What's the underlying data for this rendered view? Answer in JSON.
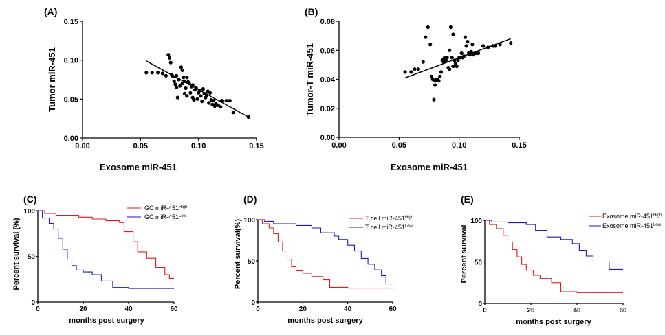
{
  "chart_data": [
    {
      "id": "A",
      "panel_label": "(A)",
      "type": "scatter",
      "xlabel": "Exosome miR-451",
      "ylabel": "Tumor miR-451",
      "xlim": [
        0.0,
        0.15
      ],
      "ylim": [
        0.0,
        0.15
      ],
      "xticks": [
        "0.00",
        "0.05",
        "0.10",
        "0.15"
      ],
      "yticks": [
        "0.00",
        "0.05",
        "0.10",
        "0.15"
      ],
      "xtick_values": [
        0.0,
        0.05,
        0.1,
        0.15
      ],
      "ytick_values": [
        0.0,
        0.05,
        0.1,
        0.15
      ],
      "regression": {
        "x": [
          0.055,
          0.143
        ],
        "y": [
          0.099,
          0.027
        ]
      },
      "points": [
        [
          0.055,
          0.084
        ],
        [
          0.06,
          0.084
        ],
        [
          0.065,
          0.084
        ],
        [
          0.069,
          0.083
        ],
        [
          0.072,
          0.08
        ],
        [
          0.074,
          0.107
        ],
        [
          0.075,
          0.103
        ],
        [
          0.076,
          0.097
        ],
        [
          0.077,
          0.081
        ],
        [
          0.078,
          0.079
        ],
        [
          0.079,
          0.073
        ],
        [
          0.08,
          0.069
        ],
        [
          0.081,
          0.08
        ],
        [
          0.081,
          0.065
        ],
        [
          0.082,
          0.052
        ],
        [
          0.083,
          0.075
        ],
        [
          0.084,
          0.067
        ],
        [
          0.085,
          0.091
        ],
        [
          0.086,
          0.087
        ],
        [
          0.086,
          0.07
        ],
        [
          0.087,
          0.078
        ],
        [
          0.088,
          0.057
        ],
        [
          0.088,
          0.073
        ],
        [
          0.089,
          0.064
        ],
        [
          0.09,
          0.078
        ],
        [
          0.09,
          0.054
        ],
        [
          0.091,
          0.072
        ],
        [
          0.092,
          0.07
        ],
        [
          0.093,
          0.058
        ],
        [
          0.094,
          0.066
        ],
        [
          0.095,
          0.052
        ],
        [
          0.095,
          0.068
        ],
        [
          0.096,
          0.049
        ],
        [
          0.097,
          0.062
        ],
        [
          0.098,
          0.064
        ],
        [
          0.099,
          0.05
        ],
        [
          0.1,
          0.058
        ],
        [
          0.101,
          0.061
        ],
        [
          0.102,
          0.054
        ],
        [
          0.103,
          0.047
        ],
        [
          0.104,
          0.063
        ],
        [
          0.105,
          0.057
        ],
        [
          0.106,
          0.052
        ],
        [
          0.107,
          0.055
        ],
        [
          0.108,
          0.06
        ],
        [
          0.109,
          0.045
        ],
        [
          0.11,
          0.058
        ],
        [
          0.111,
          0.049
        ],
        [
          0.112,
          0.043
        ],
        [
          0.113,
          0.048
        ],
        [
          0.114,
          0.041
        ],
        [
          0.115,
          0.044
        ],
        [
          0.117,
          0.042
        ],
        [
          0.119,
          0.04
        ],
        [
          0.12,
          0.048
        ],
        [
          0.124,
          0.048
        ],
        [
          0.127,
          0.048
        ],
        [
          0.13,
          0.033
        ],
        [
          0.143,
          0.027
        ]
      ]
    },
    {
      "id": "B",
      "panel_label": "(B)",
      "type": "scatter",
      "xlabel": "Exosome miR-451",
      "ylabel": "Tumor-T miR-451",
      "xlim": [
        0.0,
        0.15
      ],
      "ylim": [
        0.0,
        0.08
      ],
      "xticks": [
        "0.00",
        "0.05",
        "0.10",
        "0.15"
      ],
      "yticks": [
        "0.00",
        "0.02",
        "0.04",
        "0.06",
        "0.08"
      ],
      "xtick_values": [
        0.0,
        0.05,
        0.1,
        0.15
      ],
      "ytick_values": [
        0.0,
        0.02,
        0.04,
        0.06,
        0.08
      ],
      "regression": {
        "x": [
          0.055,
          0.143
        ],
        "y": [
          0.041,
          0.068
        ]
      },
      "points": [
        [
          0.055,
          0.045
        ],
        [
          0.06,
          0.045
        ],
        [
          0.063,
          0.047
        ],
        [
          0.066,
          0.047
        ],
        [
          0.07,
          0.052
        ],
        [
          0.072,
          0.069
        ],
        [
          0.074,
          0.076
        ],
        [
          0.076,
          0.064
        ],
        [
          0.077,
          0.042
        ],
        [
          0.078,
          0.04
        ],
        [
          0.079,
          0.026
        ],
        [
          0.08,
          0.036
        ],
        [
          0.08,
          0.039
        ],
        [
          0.081,
          0.04
        ],
        [
          0.082,
          0.04
        ],
        [
          0.083,
          0.039
        ],
        [
          0.084,
          0.042
        ],
        [
          0.085,
          0.045
        ],
        [
          0.086,
          0.053
        ],
        [
          0.087,
          0.054
        ],
        [
          0.087,
          0.052
        ],
        [
          0.088,
          0.055
        ],
        [
          0.089,
          0.053
        ],
        [
          0.09,
          0.055
        ],
        [
          0.091,
          0.048
        ],
        [
          0.092,
          0.06
        ],
        [
          0.092,
          0.047
        ],
        [
          0.093,
          0.076
        ],
        [
          0.094,
          0.055
        ],
        [
          0.095,
          0.071
        ],
        [
          0.095,
          0.049
        ],
        [
          0.096,
          0.053
        ],
        [
          0.097,
          0.051
        ],
        [
          0.098,
          0.049
        ],
        [
          0.099,
          0.053
        ],
        [
          0.1,
          0.055
        ],
        [
          0.101,
          0.055
        ],
        [
          0.102,
          0.058
        ],
        [
          0.103,
          0.055
        ],
        [
          0.104,
          0.056
        ],
        [
          0.105,
          0.069
        ],
        [
          0.106,
          0.063
        ],
        [
          0.107,
          0.066
        ],
        [
          0.108,
          0.058
        ],
        [
          0.109,
          0.057
        ],
        [
          0.11,
          0.059
        ],
        [
          0.111,
          0.064
        ],
        [
          0.112,
          0.057
        ],
        [
          0.114,
          0.058
        ],
        [
          0.116,
          0.058
        ],
        [
          0.12,
          0.063
        ],
        [
          0.124,
          0.062
        ],
        [
          0.128,
          0.063
        ],
        [
          0.13,
          0.063
        ],
        [
          0.134,
          0.064
        ],
        [
          0.143,
          0.065
        ]
      ]
    },
    {
      "id": "C",
      "panel_label": "(C)",
      "type": "line",
      "xlabel": "months post surgery",
      "ylabel": "Percent survival (%)",
      "xlim": [
        0,
        60
      ],
      "ylim": [
        0,
        100
      ],
      "xticks": [
        "0",
        "20",
        "40",
        "60"
      ],
      "yticks": [
        "0",
        "50",
        "100"
      ],
      "xtick_values": [
        0,
        20,
        40,
        60
      ],
      "ytick_values": [
        0,
        50,
        100
      ],
      "series": [
        {
          "name": "GC miR-451",
          "sup": "High",
          "color": "#e01a1a",
          "points": [
            [
              0,
              100
            ],
            [
              3,
              97
            ],
            [
              8,
              95
            ],
            [
              18,
              93
            ],
            [
              24,
              91
            ],
            [
              30,
              89
            ],
            [
              36,
              87
            ],
            [
              38,
              77
            ],
            [
              42,
              66
            ],
            [
              44,
              55
            ],
            [
              48,
              48
            ],
            [
              52,
              38
            ],
            [
              56,
              30
            ],
            [
              58,
              26
            ],
            [
              60,
              26
            ]
          ]
        },
        {
          "name": "GC miR-451",
          "sup": "Low",
          "color": "#1a1ac8",
          "points": [
            [
              0,
              100
            ],
            [
              2,
              92
            ],
            [
              5,
              86
            ],
            [
              7,
              80
            ],
            [
              9,
              70
            ],
            [
              11,
              58
            ],
            [
              13,
              47
            ],
            [
              15,
              40
            ],
            [
              17,
              35
            ],
            [
              20,
              33
            ],
            [
              24,
              30
            ],
            [
              28,
              23
            ],
            [
              33,
              16
            ],
            [
              40,
              15
            ],
            [
              60,
              15
            ]
          ]
        }
      ]
    },
    {
      "id": "D",
      "panel_label": "(D)",
      "type": "line",
      "xlabel": "months post surgery",
      "ylabel": "Percent survival(%)",
      "xlim": [
        0,
        60
      ],
      "ylim": [
        0,
        100
      ],
      "xticks": [
        "0",
        "20",
        "40",
        "60"
      ],
      "yticks": [
        "0",
        "50",
        "100"
      ],
      "xtick_values": [
        0,
        20,
        40,
        60
      ],
      "ytick_values": [
        0,
        50,
        100
      ],
      "series": [
        {
          "name": "T cell miR-451",
          "sup": "High",
          "color": "#e01a1a",
          "points": [
            [
              0,
              100
            ],
            [
              2,
              95
            ],
            [
              5,
              90
            ],
            [
              7,
              83
            ],
            [
              9,
              73
            ],
            [
              11,
              62
            ],
            [
              13,
              52
            ],
            [
              15,
              43
            ],
            [
              17,
              38
            ],
            [
              20,
              35
            ],
            [
              24,
              31
            ],
            [
              29,
              27
            ],
            [
              32,
              18
            ],
            [
              40,
              17
            ],
            [
              60,
              17
            ]
          ]
        },
        {
          "name": "T cell miR-451",
          "sup": "Low",
          "color": "#1a1ac8",
          "points": [
            [
              0,
              100
            ],
            [
              3,
              98
            ],
            [
              7,
              95
            ],
            [
              17,
              93
            ],
            [
              24,
              90
            ],
            [
              28,
              84
            ],
            [
              34,
              80
            ],
            [
              36,
              76
            ],
            [
              40,
              69
            ],
            [
              43,
              62
            ],
            [
              46,
              53
            ],
            [
              49,
              46
            ],
            [
              52,
              39
            ],
            [
              55,
              32
            ],
            [
              57,
              22
            ],
            [
              60,
              22
            ]
          ]
        }
      ]
    },
    {
      "id": "E",
      "panel_label": "(E)",
      "type": "line",
      "xlabel": "months post surgery",
      "ylabel": "Percent survival",
      "xlim": [
        0,
        60
      ],
      "ylim": [
        0,
        100
      ],
      "xticks": [
        "0",
        "20",
        "40",
        "60"
      ],
      "yticks": [
        "0",
        "50",
        "100"
      ],
      "xtick_values": [
        0,
        20,
        40,
        60
      ],
      "ytick_values": [
        0,
        50,
        100
      ],
      "series": [
        {
          "name": "Exosome miR-451",
          "sup": "High",
          "color": "#e01a1a",
          "points": [
            [
              0,
              100
            ],
            [
              2,
              95
            ],
            [
              5,
              90
            ],
            [
              8,
              82
            ],
            [
              10,
              74
            ],
            [
              12,
              65
            ],
            [
              14,
              56
            ],
            [
              16,
              47
            ],
            [
              18,
              40
            ],
            [
              21,
              34
            ],
            [
              24,
              30
            ],
            [
              29,
              25
            ],
            [
              33,
              14
            ],
            [
              40,
              13
            ],
            [
              60,
              13
            ]
          ]
        },
        {
          "name": "Exosome miR-451",
          "sup": "Low",
          "color": "#1a1ac8",
          "points": [
            [
              0,
              100
            ],
            [
              3,
              98
            ],
            [
              10,
              97
            ],
            [
              18,
              95
            ],
            [
              22,
              88
            ],
            [
              27,
              80
            ],
            [
              33,
              77
            ],
            [
              38,
              72
            ],
            [
              41,
              64
            ],
            [
              44,
              57
            ],
            [
              47,
              50
            ],
            [
              52,
              50
            ],
            [
              54,
              41
            ],
            [
              60,
              41
            ]
          ]
        }
      ]
    }
  ]
}
